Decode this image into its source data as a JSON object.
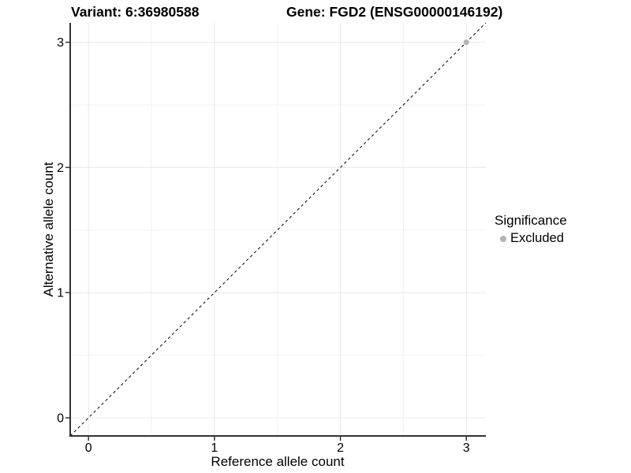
{
  "titles": {
    "variant": "Variant: 6:36980588",
    "gene": "Gene: FGD2 (ENSG00000146192)"
  },
  "legend": {
    "title": "Significance",
    "position": "right",
    "items": [
      {
        "label": "Excluded",
        "color": "#b3b3b3",
        "marker": "dot-icon"
      }
    ]
  },
  "colors": {
    "background": "#ffffff",
    "axis_line": "#333333",
    "grid_major": "#e8e8e8",
    "grid_minor": "#f2f2f2",
    "identity_line": "#000000",
    "text": "#000000",
    "excluded_point": "#b3b3b3"
  },
  "chart_data": {
    "type": "scatter",
    "title": "Variant: 6:36980588    Gene: FGD2 (ENSG00000146192)",
    "xlabel": "Reference allele count",
    "ylabel": "Alternative allele count",
    "xlim": [
      -0.145,
      3.155
    ],
    "ylim": [
      -0.145,
      3.155
    ],
    "xticks": [
      0,
      1,
      2,
      3
    ],
    "yticks": [
      0,
      1,
      2,
      3
    ],
    "minor_ticks": [
      0.5,
      1.5,
      2.5
    ],
    "grid": true,
    "legend_position": "right",
    "identity_line": {
      "style": "dashed",
      "slope": 1,
      "intercept": 0,
      "from": -0.145,
      "to": 3.155
    },
    "series": [
      {
        "name": "Excluded",
        "color": "#b3b3b3",
        "points": [
          {
            "x": 3,
            "y": 3
          }
        ]
      }
    ]
  }
}
